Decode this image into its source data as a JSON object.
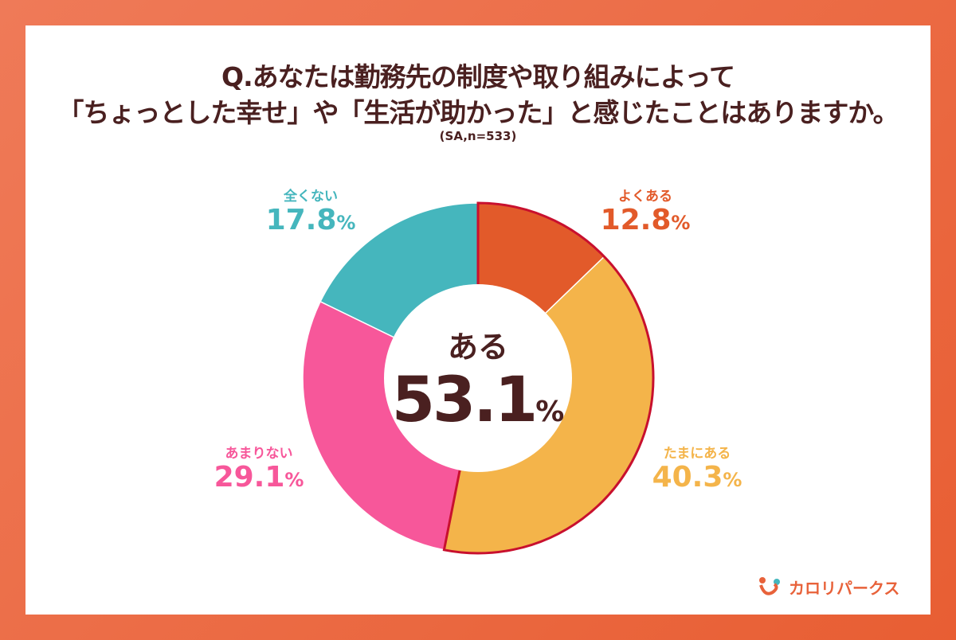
{
  "chart_data": {
    "type": "pie",
    "title_line1": "Q.あなたは勤務先の制度や取り組みによって",
    "title_line2": "「ちょっとした幸せ」や「生活が助かった」と感じたことはありますか。",
    "note": "(SA,n=533)",
    "unit": "%",
    "slices": [
      {
        "label": "よくある",
        "value": 12.8,
        "color": "#E25A2A"
      },
      {
        "label": "たまにある",
        "value": 40.3,
        "color": "#F4B44A"
      },
      {
        "label": "あまりない",
        "value": 29.1,
        "color": "#F7579A"
      },
      {
        "label": "全くない",
        "value": 17.8,
        "color": "#45B6BD"
      }
    ],
    "center": {
      "label": "ある",
      "value": 53.1,
      "highlight_color": "#C8102E"
    }
  },
  "logo": {
    "text": "カロリパークス"
  }
}
